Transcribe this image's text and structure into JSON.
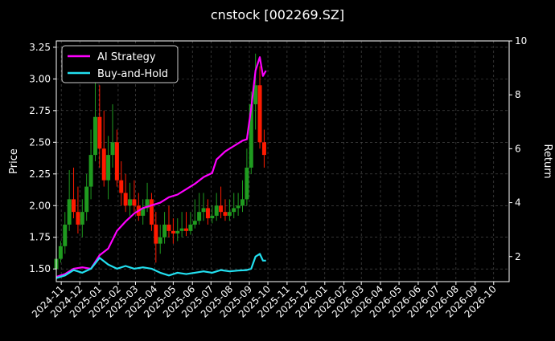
{
  "chart_data": {
    "type": "line",
    "title": "cnstock [002269.SZ]",
    "ylabel": "Price",
    "y2label": "Return",
    "ylim": [
      1.4,
      3.3
    ],
    "y2lim": [
      1.07,
      10.0
    ],
    "yticks": [
      "1.50",
      "1.75",
      "2.00",
      "2.25",
      "2.50",
      "2.75",
      "3.00",
      "3.25"
    ],
    "y2ticks": [
      "2",
      "4",
      "6",
      "8",
      "10"
    ],
    "xlim": [
      "2024-10-24",
      "2026-10-26"
    ],
    "xticks": [
      "2024-11",
      "2024-12",
      "2025-01",
      "2025-02",
      "2025-03",
      "2025-04",
      "2025-05",
      "2025-06",
      "2025-07",
      "2025-08",
      "2025-09",
      "2025-10",
      "2025-11",
      "2025-12",
      "2026-01",
      "2026-02",
      "2026-03",
      "2026-04",
      "2026-05",
      "2026-06",
      "2026-07",
      "2026-08",
      "2026-09",
      "2026-10"
    ],
    "grid": true,
    "legend_position": "top-left",
    "background": "#000000",
    "colors": {
      "up": "#1f9b1f",
      "down": "#ff1a00",
      "strategy": "#ff00ff",
      "buyhold": "#22e0f0",
      "grid": "#555555"
    },
    "candles": {
      "x": [
        "2024-10-24",
        "2024-10-31",
        "2024-11-07",
        "2024-11-14",
        "2024-11-21",
        "2024-11-28",
        "2024-12-05",
        "2024-12-12",
        "2024-12-19",
        "2024-12-26",
        "2025-01-02",
        "2025-01-09",
        "2025-01-16",
        "2025-01-23",
        "2025-01-30",
        "2025-02-06",
        "2025-02-13",
        "2025-02-20",
        "2025-02-27",
        "2025-03-06",
        "2025-03-13",
        "2025-03-20",
        "2025-03-27",
        "2025-04-03",
        "2025-04-10",
        "2025-04-17",
        "2025-04-24",
        "2025-05-01",
        "2025-05-08",
        "2025-05-15",
        "2025-05-22",
        "2025-05-29",
        "2025-06-05",
        "2025-06-12",
        "2025-06-19",
        "2025-06-26",
        "2025-07-03",
        "2025-07-10",
        "2025-07-17",
        "2025-07-24",
        "2025-07-31",
        "2025-08-07",
        "2025-08-14",
        "2025-08-21",
        "2025-08-28",
        "2025-09-04",
        "2025-09-11",
        "2025-09-18",
        "2025-09-25"
      ],
      "open": [
        1.5,
        1.58,
        1.68,
        1.85,
        2.05,
        1.95,
        1.85,
        1.95,
        2.15,
        2.4,
        2.7,
        2.45,
        2.2,
        2.4,
        2.5,
        2.2,
        2.1,
        2.0,
        2.05,
        2.0,
        1.92,
        1.98,
        2.05,
        1.85,
        1.7,
        1.75,
        1.85,
        1.8,
        1.78,
        1.8,
        1.82,
        1.8,
        1.85,
        1.88,
        1.95,
        1.98,
        1.9,
        1.92,
        2.0,
        1.95,
        1.92,
        1.95,
        1.98,
        2.0,
        2.05,
        2.3,
        2.8,
        2.95,
        2.5
      ],
      "high": [
        1.62,
        1.72,
        1.95,
        2.28,
        2.3,
        2.15,
        2.05,
        2.25,
        2.6,
        3.05,
        2.95,
        2.75,
        2.55,
        2.8,
        2.6,
        2.35,
        2.25,
        2.18,
        2.2,
        2.1,
        2.05,
        2.18,
        2.1,
        1.95,
        1.85,
        1.95,
        2.0,
        1.9,
        1.9,
        1.95,
        1.95,
        1.95,
        2.05,
        2.1,
        2.1,
        2.05,
        2.0,
        2.1,
        2.15,
        2.05,
        2.05,
        2.1,
        2.1,
        2.2,
        2.45,
        2.9,
        3.2,
        3.1,
        2.6
      ],
      "low": [
        1.48,
        1.55,
        1.62,
        1.8,
        1.9,
        1.78,
        1.75,
        1.88,
        2.05,
        2.35,
        2.3,
        2.15,
        2.05,
        2.3,
        2.15,
        2.0,
        1.95,
        1.92,
        1.95,
        1.88,
        1.85,
        1.95,
        1.8,
        1.55,
        1.62,
        1.7,
        1.75,
        1.7,
        1.72,
        1.75,
        1.76,
        1.77,
        1.82,
        1.85,
        1.88,
        1.85,
        1.86,
        1.88,
        1.9,
        1.88,
        1.88,
        1.9,
        1.92,
        1.95,
        2.0,
        2.25,
        2.6,
        2.45,
        2.3
      ],
      "close": [
        1.58,
        1.68,
        1.85,
        2.05,
        1.95,
        1.85,
        1.95,
        2.15,
        2.4,
        2.7,
        2.45,
        2.2,
        2.4,
        2.5,
        2.2,
        2.1,
        2.0,
        2.05,
        2.0,
        1.92,
        1.98,
        2.05,
        1.85,
        1.7,
        1.75,
        1.85,
        1.8,
        1.78,
        1.8,
        1.82,
        1.8,
        1.85,
        1.88,
        1.95,
        1.98,
        1.9,
        1.92,
        2.0,
        1.95,
        1.92,
        1.95,
        1.98,
        2.0,
        2.05,
        2.3,
        2.8,
        2.95,
        2.5,
        2.4
      ]
    },
    "series": [
      {
        "name": "AI Strategy",
        "axis": "right",
        "x": [
          "2024-10-24",
          "2024-11-07",
          "2024-11-21",
          "2024-12-05",
          "2024-12-19",
          "2025-01-02",
          "2025-01-16",
          "2025-01-30",
          "2025-02-13",
          "2025-02-27",
          "2025-03-13",
          "2025-03-27",
          "2025-04-10",
          "2025-04-24",
          "2025-05-08",
          "2025-05-22",
          "2025-06-05",
          "2025-06-19",
          "2025-07-03",
          "2025-07-10",
          "2025-07-24",
          "2025-08-07",
          "2025-08-21",
          "2025-08-28",
          "2025-09-04",
          "2025-09-11",
          "2025-09-18",
          "2025-09-23",
          "2025-09-28"
        ],
        "values": [
          1.25,
          1.35,
          1.55,
          1.6,
          1.55,
          2.05,
          2.3,
          2.95,
          3.3,
          3.6,
          3.8,
          3.9,
          4.0,
          4.2,
          4.3,
          4.5,
          4.7,
          4.95,
          5.1,
          5.6,
          5.9,
          6.1,
          6.3,
          6.35,
          7.5,
          8.9,
          9.4,
          8.7,
          8.9
        ]
      },
      {
        "name": "Buy-and-Hold",
        "axis": "right",
        "x": [
          "2024-10-24",
          "2024-11-07",
          "2024-11-21",
          "2024-12-05",
          "2024-12-19",
          "2025-01-02",
          "2025-01-16",
          "2025-01-30",
          "2025-02-13",
          "2025-02-27",
          "2025-03-13",
          "2025-03-27",
          "2025-04-10",
          "2025-04-24",
          "2025-05-08",
          "2025-05-22",
          "2025-06-05",
          "2025-06-19",
          "2025-07-03",
          "2025-07-17",
          "2025-07-31",
          "2025-08-14",
          "2025-08-28",
          "2025-09-04",
          "2025-09-11",
          "2025-09-18",
          "2025-09-23",
          "2025-09-28"
        ],
        "values": [
          1.2,
          1.3,
          1.5,
          1.4,
          1.55,
          1.95,
          1.7,
          1.55,
          1.65,
          1.55,
          1.6,
          1.55,
          1.4,
          1.3,
          1.4,
          1.35,
          1.4,
          1.45,
          1.4,
          1.5,
          1.45,
          1.48,
          1.5,
          1.55,
          2.0,
          2.1,
          1.85,
          1.85
        ]
      }
    ]
  }
}
